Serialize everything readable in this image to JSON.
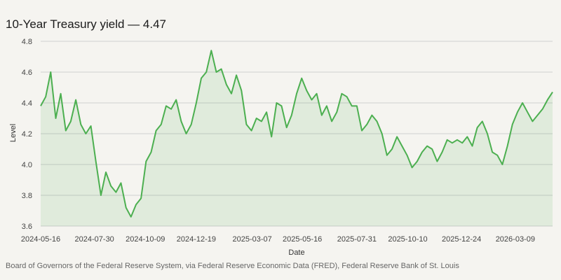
{
  "colors": {
    "line": "#4caf50",
    "fill": "#4caf50",
    "background": "#f5f4f0",
    "grid": "#cfcfcf"
  },
  "source": "Board of Governors of the Federal Reserve System, via Federal Reserve Economic Data (FRED), Federal Reserve Bank of St. Louis",
  "chart_data": {
    "type": "area",
    "title": "10-Year Treasury yield — 4.47",
    "xlabel": "Date",
    "ylabel": "Level",
    "ylim": [
      3.6,
      4.8
    ],
    "y_ticks": [
      3.6,
      3.8,
      4.0,
      4.2,
      4.4,
      4.6,
      4.8
    ],
    "x_ticks": [
      "2024-05-16",
      "2024-07-30",
      "2024-10-09",
      "2024-12-19",
      "2025-03-07",
      "2025-05-16",
      "2025-07-31",
      "2025-10-10",
      "2025-12-24",
      "2026-03-09"
    ],
    "grid": true,
    "legend": "none",
    "series": [
      {
        "x": [
          "2024-05-16",
          "2024-05-23",
          "2024-05-30",
          "2024-06-06",
          "2024-06-13",
          "2024-06-20",
          "2024-06-27",
          "2024-07-04",
          "2024-07-11",
          "2024-07-18",
          "2024-07-25",
          "2024-08-01",
          "2024-08-08",
          "2024-08-15",
          "2024-08-22",
          "2024-08-29",
          "2024-09-05",
          "2024-09-12",
          "2024-09-19",
          "2024-09-26",
          "2024-10-03",
          "2024-10-10",
          "2024-10-17",
          "2024-10-24",
          "2024-10-31",
          "2024-11-07",
          "2024-11-14",
          "2024-11-21",
          "2024-11-28",
          "2024-12-05",
          "2024-12-12",
          "2024-12-19",
          "2024-12-26",
          "2025-01-02",
          "2025-01-09",
          "2025-01-16",
          "2025-01-23",
          "2025-01-30",
          "2025-02-06",
          "2025-02-13",
          "2025-02-20",
          "2025-02-27",
          "2025-03-06",
          "2025-03-13",
          "2025-03-20",
          "2025-03-27",
          "2025-04-03",
          "2025-04-10",
          "2025-04-17",
          "2025-04-24",
          "2025-05-01",
          "2025-05-08",
          "2025-05-15",
          "2025-05-22",
          "2025-05-29",
          "2025-06-05",
          "2025-06-12",
          "2025-06-19",
          "2025-06-26",
          "2025-07-03",
          "2025-07-10",
          "2025-07-17",
          "2025-07-24",
          "2025-07-31",
          "2025-08-07",
          "2025-08-14",
          "2025-08-21",
          "2025-08-28",
          "2025-09-04",
          "2025-09-11",
          "2025-09-18",
          "2025-09-25",
          "2025-10-02",
          "2025-10-09",
          "2025-10-16",
          "2025-10-23",
          "2025-10-30",
          "2025-11-06",
          "2025-11-13",
          "2025-11-20",
          "2025-11-27",
          "2025-12-04",
          "2025-12-11",
          "2025-12-18",
          "2025-12-25",
          "2026-01-01",
          "2026-01-08",
          "2026-01-15",
          "2026-01-22",
          "2026-01-29",
          "2026-02-05",
          "2026-02-12",
          "2026-02-19",
          "2026-02-26",
          "2026-03-05",
          "2026-03-12",
          "2026-03-19",
          "2026-03-26",
          "2026-04-02",
          "2026-04-09",
          "2026-04-16",
          "2026-04-23",
          "2026-04-30"
        ],
        "values": [
          4.38,
          4.44,
          4.6,
          4.3,
          4.46,
          4.22,
          4.28,
          4.42,
          4.26,
          4.2,
          4.25,
          4.02,
          3.8,
          3.95,
          3.86,
          3.82,
          3.88,
          3.72,
          3.66,
          3.74,
          3.78,
          4.02,
          4.08,
          4.22,
          4.26,
          4.38,
          4.36,
          4.42,
          4.28,
          4.2,
          4.26,
          4.4,
          4.56,
          4.6,
          4.74,
          4.6,
          4.62,
          4.52,
          4.46,
          4.58,
          4.48,
          4.26,
          4.22,
          4.3,
          4.28,
          4.34,
          4.18,
          4.4,
          4.38,
          4.24,
          4.32,
          4.46,
          4.56,
          4.48,
          4.42,
          4.46,
          4.32,
          4.38,
          4.28,
          4.34,
          4.46,
          4.44,
          4.38,
          4.38,
          4.22,
          4.26,
          4.32,
          4.28,
          4.2,
          4.06,
          4.1,
          4.18,
          4.12,
          4.06,
          3.98,
          4.02,
          4.08,
          4.12,
          4.1,
          4.02,
          4.08,
          4.16,
          4.14,
          4.16,
          4.14,
          4.18,
          4.12,
          4.24,
          4.28,
          4.2,
          4.08,
          4.06,
          4.0,
          4.12,
          4.26,
          4.34,
          4.4,
          4.34,
          4.28,
          4.32,
          4.36,
          4.42,
          4.47
        ]
      }
    ]
  }
}
